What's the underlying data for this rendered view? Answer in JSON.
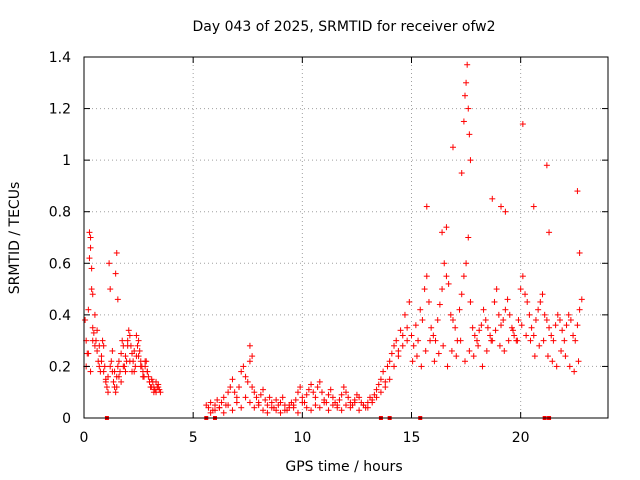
{
  "chart_data": {
    "type": "scatter",
    "title": "Day 043 of 2025, SRMTID for receiver ofw2",
    "xlabel": "GPS time / hours",
    "ylabel": "SRMTID / TECUs",
    "xlim": [
      0,
      24
    ],
    "ylim": [
      0,
      1.4
    ],
    "x_ticks": [
      0,
      5,
      10,
      15,
      20
    ],
    "x_tick_labels": [
      "0",
      "5",
      "10",
      "15",
      "20"
    ],
    "y_ticks": [
      0,
      0.2,
      0.4,
      0.6,
      0.8,
      1.0,
      1.2,
      1.4
    ],
    "y_tick_labels": [
      "0",
      "0.2",
      "0.4",
      "0.6",
      "0.8",
      "1",
      "1.2",
      "1.4"
    ],
    "grid": true,
    "marker": "plus",
    "color": "#ff0000",
    "series": [
      {
        "name": "SRMTID ofw2",
        "x": [
          0.05,
          0.1,
          0.15,
          0.2,
          0.25,
          0.3,
          0.35,
          0.4,
          0.45,
          0.5,
          0.55,
          0.6,
          0.65,
          0.7,
          0.75,
          0.8,
          0.85,
          0.9,
          0.95,
          1.0,
          1.05,
          1.1,
          1.15,
          1.2,
          1.25,
          1.3,
          1.35,
          1.4,
          1.45,
          1.5,
          1.55,
          1.6,
          1.65,
          1.7,
          1.75,
          1.8,
          1.85,
          1.9,
          1.95,
          2.0,
          2.05,
          2.1,
          2.15,
          2.2,
          2.25,
          2.3,
          2.35,
          2.4,
          2.45,
          2.5,
          2.55,
          2.6,
          2.65,
          2.7,
          2.75,
          2.8,
          2.85,
          2.9,
          2.95,
          3.0,
          3.05,
          3.1,
          3.15,
          3.2,
          3.25,
          3.3,
          3.35,
          3.4,
          3.45,
          3.5,
          0.1,
          0.2,
          0.3,
          0.4,
          0.5,
          0.6,
          0.7,
          0.8,
          0.9,
          1.0,
          1.1,
          1.2,
          1.3,
          1.4,
          1.5,
          1.6,
          1.7,
          1.8,
          1.9,
          2.0,
          2.1,
          2.2,
          2.3,
          2.4,
          2.5,
          2.6,
          2.7,
          2.8,
          2.9,
          3.0,
          3.1,
          3.2,
          3.3,
          3.4,
          0.25,
          0.3,
          0.35,
          0.4,
          1.45,
          1.5,
          1.55,
          5.6,
          5.7,
          5.8,
          5.9,
          6.0,
          6.1,
          6.2,
          6.3,
          6.4,
          6.5,
          6.6,
          6.7,
          6.8,
          6.9,
          7.0,
          7.1,
          7.2,
          7.3,
          7.4,
          7.5,
          7.6,
          7.7,
          7.8,
          7.9,
          8.0,
          8.1,
          8.2,
          8.3,
          8.4,
          8.5,
          8.6,
          8.7,
          8.8,
          8.9,
          9.0,
          9.1,
          9.2,
          9.3,
          9.4,
          9.5,
          9.6,
          9.7,
          9.8,
          9.9,
          10.0,
          10.1,
          10.2,
          10.3,
          10.4,
          10.5,
          10.6,
          10.7,
          10.8,
          10.9,
          11.0,
          11.1,
          11.2,
          11.3,
          11.4,
          11.5,
          11.6,
          11.7,
          11.8,
          11.9,
          12.0,
          12.1,
          12.2,
          12.3,
          12.4,
          12.5,
          12.6,
          12.7,
          12.8,
          12.9,
          13.0,
          13.1,
          13.2,
          13.3,
          13.4,
          13.5,
          13.6,
          13.7,
          13.8,
          13.9,
          14.0,
          14.1,
          14.2,
          14.3,
          14.4,
          14.5,
          14.6,
          14.7,
          14.8,
          14.9,
          5.8,
          6.0,
          6.2,
          6.4,
          6.6,
          6.8,
          7.0,
          7.2,
          7.4,
          7.6,
          7.8,
          8.0,
          8.2,
          8.4,
          8.6,
          8.8,
          9.0,
          9.2,
          9.4,
          9.6,
          9.8,
          10.0,
          10.2,
          10.4,
          10.6,
          10.8,
          11.0,
          11.2,
          11.4,
          11.6,
          11.8,
          12.0,
          12.2,
          12.4,
          12.6,
          12.8,
          13.0,
          13.2,
          13.4,
          13.6,
          13.8,
          14.0,
          14.2,
          14.4,
          14.6,
          14.8,
          7.6,
          7.7,
          15.0,
          15.1,
          15.2,
          15.3,
          15.4,
          15.5,
          15.6,
          15.7,
          15.8,
          15.9,
          16.0,
          16.1,
          16.2,
          16.3,
          16.4,
          16.5,
          16.6,
          16.7,
          16.8,
          16.9,
          17.0,
          17.1,
          17.2,
          17.3,
          17.4,
          17.5,
          17.6,
          17.7,
          17.8,
          17.9,
          18.0,
          18.1,
          18.2,
          18.3,
          18.4,
          18.5,
          18.6,
          18.7,
          18.8,
          18.9,
          19.0,
          19.1,
          19.2,
          19.3,
          19.4,
          19.5,
          19.6,
          19.7,
          19.8,
          19.9,
          20.0,
          20.1,
          20.2,
          20.3,
          20.4,
          20.5,
          20.6,
          20.7,
          20.8,
          20.9,
          21.0,
          21.1,
          21.2,
          21.3,
          21.4,
          21.5,
          21.6,
          21.7,
          21.8,
          21.9,
          22.0,
          22.1,
          22.2,
          22.3,
          22.4,
          22.5,
          22.6,
          22.7,
          22.8,
          15.05,
          15.25,
          15.45,
          15.65,
          15.85,
          16.05,
          16.25,
          16.45,
          16.65,
          16.85,
          17.05,
          17.25,
          17.45,
          17.65,
          17.85,
          18.05,
          18.25,
          18.45,
          18.65,
          18.85,
          19.05,
          19.25,
          19.45,
          19.65,
          19.85,
          20.05,
          20.25,
          20.45,
          20.65,
          20.85,
          21.05,
          21.25,
          21.45,
          21.65,
          21.85,
          22.05,
          22.25,
          22.45,
          22.65,
          15.7,
          16.4,
          16.6,
          16.9,
          17.3,
          17.4,
          17.45,
          17.5,
          17.55,
          17.6,
          17.65,
          17.7,
          18.7,
          19.1,
          19.3,
          20.1,
          20.6,
          21.2,
          21.3,
          22.6,
          22.7,
          1.05,
          5.6,
          6.0,
          13.6,
          14.0,
          15.4,
          21.1,
          21.3
        ],
        "y": [
          0.38,
          0.3,
          0.25,
          0.42,
          0.62,
          0.7,
          0.5,
          0.35,
          0.33,
          0.28,
          0.3,
          0.26,
          0.22,
          0.2,
          0.18,
          0.24,
          0.3,
          0.28,
          0.2,
          0.15,
          0.12,
          0.16,
          0.6,
          0.5,
          0.22,
          0.18,
          0.14,
          0.12,
          0.1,
          0.16,
          0.2,
          0.22,
          0.18,
          0.25,
          0.3,
          0.28,
          0.2,
          0.18,
          0.22,
          0.3,
          0.34,
          0.32,
          0.28,
          0.25,
          0.22,
          0.18,
          0.2,
          0.24,
          0.28,
          0.3,
          0.26,
          0.22,
          0.2,
          0.18,
          0.16,
          0.2,
          0.22,
          0.18,
          0.16,
          0.14,
          0.12,
          0.15,
          0.14,
          0.12,
          0.11,
          0.1,
          0.12,
          0.13,
          0.11,
          0.1,
          0.2,
          0.25,
          0.18,
          0.3,
          0.4,
          0.34,
          0.28,
          0.22,
          0.18,
          0.14,
          0.1,
          0.2,
          0.26,
          0.18,
          0.12,
          0.16,
          0.14,
          0.2,
          0.24,
          0.28,
          0.22,
          0.18,
          0.26,
          0.32,
          0.24,
          0.2,
          0.16,
          0.22,
          0.18,
          0.14,
          0.12,
          0.1,
          0.14,
          0.12,
          0.72,
          0.66,
          0.58,
          0.48,
          0.56,
          0.64,
          0.46,
          0.05,
          0.04,
          0.06,
          0.03,
          0.05,
          0.07,
          0.04,
          0.06,
          0.08,
          0.05,
          0.1,
          0.12,
          0.15,
          0.1,
          0.08,
          0.12,
          0.18,
          0.2,
          0.16,
          0.14,
          0.22,
          0.12,
          0.1,
          0.08,
          0.06,
          0.09,
          0.11,
          0.07,
          0.05,
          0.08,
          0.06,
          0.04,
          0.07,
          0.05,
          0.06,
          0.08,
          0.05,
          0.03,
          0.04,
          0.06,
          0.05,
          0.07,
          0.1,
          0.12,
          0.08,
          0.06,
          0.09,
          0.11,
          0.13,
          0.1,
          0.08,
          0.12,
          0.14,
          0.1,
          0.07,
          0.06,
          0.09,
          0.11,
          0.08,
          0.06,
          0.05,
          0.07,
          0.09,
          0.12,
          0.1,
          0.08,
          0.06,
          0.05,
          0.07,
          0.09,
          0.08,
          0.06,
          0.05,
          0.04,
          0.06,
          0.08,
          0.07,
          0.09,
          0.11,
          0.13,
          0.15,
          0.18,
          0.14,
          0.2,
          0.22,
          0.25,
          0.28,
          0.3,
          0.26,
          0.34,
          0.32,
          0.4,
          0.35,
          0.45,
          0.02,
          0.03,
          0.04,
          0.02,
          0.05,
          0.03,
          0.06,
          0.04,
          0.08,
          0.06,
          0.04,
          0.05,
          0.03,
          0.02,
          0.04,
          0.03,
          0.02,
          0.03,
          0.05,
          0.04,
          0.02,
          0.06,
          0.04,
          0.03,
          0.05,
          0.04,
          0.06,
          0.03,
          0.05,
          0.04,
          0.03,
          0.05,
          0.04,
          0.06,
          0.03,
          0.05,
          0.04,
          0.06,
          0.08,
          0.1,
          0.12,
          0.15,
          0.2,
          0.24,
          0.28,
          0.3,
          0.28,
          0.24,
          0.32,
          0.28,
          0.36,
          0.3,
          0.42,
          0.38,
          0.5,
          0.55,
          0.45,
          0.35,
          0.32,
          0.3,
          0.38,
          0.44,
          0.5,
          0.6,
          0.55,
          0.52,
          0.4,
          0.38,
          0.35,
          0.3,
          0.42,
          0.48,
          0.55,
          0.6,
          0.7,
          0.45,
          0.35,
          0.32,
          0.3,
          0.34,
          0.36,
          0.42,
          0.38,
          0.35,
          0.32,
          0.3,
          0.45,
          0.5,
          0.4,
          0.36,
          0.38,
          0.42,
          0.46,
          0.4,
          0.35,
          0.32,
          0.3,
          0.38,
          0.5,
          0.55,
          0.48,
          0.45,
          0.4,
          0.35,
          0.32,
          0.38,
          0.42,
          0.45,
          0.48,
          0.4,
          0.38,
          0.35,
          0.32,
          0.3,
          0.36,
          0.4,
          0.38,
          0.34,
          0.3,
          0.36,
          0.4,
          0.38,
          0.32,
          0.3,
          0.36,
          0.42,
          0.46,
          0.22,
          0.24,
          0.2,
          0.26,
          0.3,
          0.22,
          0.25,
          0.28,
          0.2,
          0.26,
          0.24,
          0.3,
          0.22,
          0.26,
          0.24,
          0.28,
          0.2,
          0.26,
          0.3,
          0.34,
          0.28,
          0.26,
          0.3,
          0.34,
          0.3,
          0.36,
          0.32,
          0.3,
          0.24,
          0.28,
          0.3,
          0.24,
          0.22,
          0.2,
          0.26,
          0.24,
          0.2,
          0.18,
          0.22,
          0.82,
          0.72,
          0.74,
          1.05,
          0.95,
          1.15,
          1.25,
          1.3,
          1.37,
          1.2,
          1.1,
          1.0,
          0.85,
          0.82,
          0.8,
          1.14,
          0.82,
          0.98,
          0.72,
          0.88,
          0.64,
          0.0,
          0.0,
          0.0,
          0.0,
          0.0,
          0.0,
          0.0,
          0.0
        ]
      }
    ]
  }
}
